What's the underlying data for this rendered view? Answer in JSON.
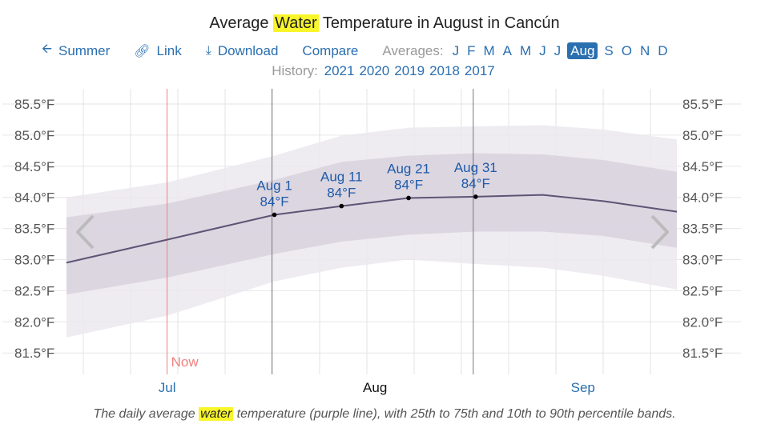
{
  "title": {
    "pre": "Average ",
    "highlight": "Water",
    "post": " Temperature in August in Cancún"
  },
  "nav": {
    "summer": "Summer",
    "link": "Link",
    "download": "Download",
    "compare": "Compare",
    "averages_label": "Averages:",
    "months": [
      "J",
      "F",
      "M",
      "A",
      "M",
      "J",
      "J",
      "Aug",
      "S",
      "O",
      "N",
      "D"
    ],
    "selected_month": "Aug",
    "icons": {
      "summer": "arrow-left-icon",
      "link": "link-icon",
      "download": "download-icon"
    }
  },
  "history": {
    "label": "History:",
    "years": [
      "2021",
      "2020",
      "2019",
      "2018",
      "2017"
    ]
  },
  "chart_data": {
    "type": "line",
    "title": "Average Water Temperature in August in Cancún",
    "ylim": [
      81.25,
      85.75
    ],
    "yticks": [
      "85.5°F",
      "85.0°F",
      "84.5°F",
      "84.0°F",
      "83.5°F",
      "83.0°F",
      "82.5°F",
      "82.0°F",
      "81.5°F"
    ],
    "ytick_values": [
      85.5,
      85.0,
      84.5,
      84.0,
      83.5,
      83.0,
      82.5,
      82.0,
      81.5
    ],
    "xrange": [
      "Jul 1",
      "Sep 30"
    ],
    "xticks": [
      {
        "label": "Jul",
        "date": "Jul 16"
      },
      {
        "label": "Aug",
        "date": "Aug 16"
      },
      {
        "label": "Sep",
        "date": "Sep 16"
      }
    ],
    "selected_xtick": "Aug",
    "dates": [
      "Jul 1",
      "Jul 16",
      "Aug 1",
      "Aug 11",
      "Aug 21",
      "Aug 31",
      "Sep 10",
      "Sep 19",
      "Sep 30"
    ],
    "series": [
      {
        "name": "purple line",
        "values": [
          82.95,
          83.32,
          83.72,
          83.86,
          83.99,
          84.01,
          84.04,
          83.94,
          83.77
        ]
      }
    ],
    "bands": [
      {
        "name": "10th to 90th percentile",
        "low": [
          81.75,
          82.1,
          82.65,
          82.87,
          83.0,
          82.93,
          82.87,
          82.74,
          82.52
        ],
        "high": [
          84.0,
          84.24,
          84.67,
          84.99,
          85.12,
          85.14,
          85.16,
          85.09,
          84.93
        ]
      },
      {
        "name": "25th to 75th percentile",
        "low": [
          82.44,
          82.71,
          83.09,
          83.29,
          83.4,
          83.45,
          83.45,
          83.38,
          83.19
        ],
        "high": [
          83.68,
          83.9,
          84.28,
          84.57,
          84.67,
          84.71,
          84.69,
          84.6,
          84.41
        ]
      }
    ],
    "annotations": [
      {
        "date": "Aug 1",
        "value": 83.72,
        "label": "Aug 1",
        "text": "84°F"
      },
      {
        "date": "Aug 11",
        "value": 83.86,
        "label": "Aug 11",
        "text": "84°F"
      },
      {
        "date": "Aug 21",
        "value": 83.99,
        "label": "Aug 21",
        "text": "84°F"
      },
      {
        "date": "Aug 31",
        "value": 84.01,
        "label": "Aug 31",
        "text": "84°F"
      }
    ],
    "month_boundaries": [
      "Aug 1",
      "Aug 31"
    ],
    "now": {
      "date": "Jul 16",
      "label": "Now"
    },
    "grid": true,
    "colors": {
      "line": "#5e5475",
      "band_inner": "#d8d2de",
      "band_outer": "#ebe8ee",
      "now": "#f08080",
      "link": "#2a6fb0"
    }
  },
  "caption": {
    "pre": "The daily average ",
    "highlight": "water",
    "post": " temperature (purple line), with 25th to 75th and 10th to 90th percentile bands."
  }
}
